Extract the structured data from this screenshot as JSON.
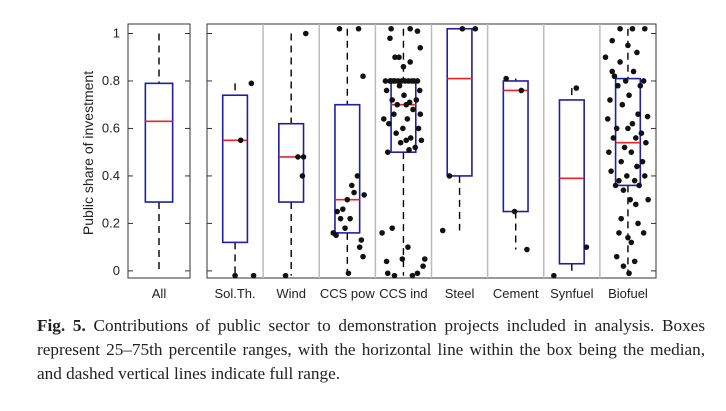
{
  "chart_data": {
    "type": "box",
    "ylabel": "Public share of investment",
    "ylim": [
      -0.03,
      1.04
    ],
    "yticks": [
      0,
      0.2,
      0.4,
      0.6,
      0.8,
      1
    ],
    "ytick_labels": [
      "0",
      "0.2",
      "0.4",
      "0.6",
      "0.8",
      "1"
    ],
    "colors": {
      "box": "#1f1fa0",
      "median": "#e8242a",
      "points": "#111111",
      "axis": "#333333",
      "divider": "#bbbbbb"
    },
    "panels": [
      {
        "categories": [
          {
            "name": "All",
            "min": 0,
            "q1": 0.29,
            "median": 0.63,
            "q3": 0.79,
            "max": 1.0,
            "points": []
          }
        ]
      },
      {
        "categories": [
          {
            "name": "Sol.Th.",
            "min": -0.02,
            "q1": 0.12,
            "median": 0.55,
            "q3": 0.74,
            "max": 0.79,
            "points": [
              [
                0.5,
                -0.02
              ],
              [
                0.6,
                0.55
              ],
              [
                0.79,
                0.79
              ],
              [
                0.83,
                -0.02
              ]
            ]
          },
          {
            "name": "Wind",
            "min": -0.02,
            "q1": 0.29,
            "median": 0.48,
            "q3": 0.62,
            "max": 1.0,
            "points": [
              [
                0.4,
                -0.02
              ],
              [
                0.62,
                0.48
              ],
              [
                0.7,
                0.4
              ],
              [
                0.72,
                0.48
              ],
              [
                0.76,
                1.0
              ]
            ]
          },
          {
            "name": "CCS pow",
            "min": -0.01,
            "q1": 0.16,
            "median": 0.3,
            "q3": 0.7,
            "max": 1.02,
            "points": [
              [
                0.25,
                0.16
              ],
              [
                0.3,
                0.15
              ],
              [
                0.32,
                0.25
              ],
              [
                0.38,
                0.22
              ],
              [
                0.42,
                0.26
              ],
              [
                0.46,
                0.18
              ],
              [
                0.5,
                0.3
              ],
              [
                0.55,
                0.22
              ],
              [
                0.58,
                0.36
              ],
              [
                0.62,
                0.33
              ],
              [
                0.68,
                0.4
              ],
              [
                0.72,
                0.1
              ],
              [
                0.75,
                0.13
              ],
              [
                0.78,
                0.06
              ],
              [
                0.8,
                0.32
              ],
              [
                0.52,
                -0.01
              ],
              [
                0.36,
                1.02
              ],
              [
                0.7,
                1.02
              ],
              [
                0.78,
                0.82
              ]
            ]
          },
          {
            "name": "CCS ind",
            "min": -0.02,
            "q1": 0.5,
            "median": 0.7,
            "q3": 0.8,
            "max": 1.02,
            "points": [
              [
                0.12,
                0.16
              ],
              [
                0.18,
                0.8
              ],
              [
                0.2,
                0.76
              ],
              [
                0.22,
                0.5
              ],
              [
                0.24,
                0.62
              ],
              [
                0.26,
                0.8
              ],
              [
                0.28,
                0.8
              ],
              [
                0.3,
                0.72
              ],
              [
                0.32,
                0.8
              ],
              [
                0.33,
                0.66
              ],
              [
                0.35,
                0.8
              ],
              [
                0.37,
                0.58
              ],
              [
                0.39,
                0.7
              ],
              [
                0.41,
                0.8
              ],
              [
                0.43,
                0.78
              ],
              [
                0.45,
                0.54
              ],
              [
                0.47,
                0.8
              ],
              [
                0.49,
                0.6
              ],
              [
                0.51,
                0.74
              ],
              [
                0.53,
                0.8
              ],
              [
                0.55,
                0.7
              ],
              [
                0.57,
                0.64
              ],
              [
                0.59,
                0.8
              ],
              [
                0.61,
                0.71
              ],
              [
                0.63,
                0.56
              ],
              [
                0.65,
                0.8
              ],
              [
                0.67,
                0.68
              ],
              [
                0.69,
                0.8
              ],
              [
                0.71,
                0.52
              ],
              [
                0.73,
                0.72
              ],
              [
                0.75,
                0.8
              ],
              [
                0.77,
                0.6
              ],
              [
                0.79,
                0.76
              ],
              [
                0.8,
                0.66
              ],
              [
                0.82,
                0.55
              ],
              [
                0.55,
                0.55
              ],
              [
                0.6,
                0.51
              ],
              [
                0.3,
                0.18
              ],
              [
                0.58,
                0.1
              ],
              [
                0.48,
                0.05
              ],
              [
                0.2,
                0.04
              ],
              [
                0.22,
                -0.01
              ],
              [
                0.34,
                -0.02
              ],
              [
                0.66,
                -0.02
              ],
              [
                0.75,
                -0.01
              ],
              [
                0.85,
                0.02
              ],
              [
                0.88,
                0.05
              ],
              [
                0.28,
                1.02
              ],
              [
                0.62,
                1.02
              ],
              [
                0.75,
                1.01
              ],
              [
                0.26,
                0.98
              ],
              [
                0.42,
                0.9
              ],
              [
                0.62,
                0.88
              ],
              [
                0.8,
                0.94
              ],
              [
                0.5,
                0.86
              ],
              [
                0.35,
                0.9
              ],
              [
                0.15,
                0.64
              ]
            ]
          },
          {
            "name": "Steel",
            "min": 0.17,
            "q1": 0.4,
            "median": 0.81,
            "q3": 1.02,
            "max": 1.02,
            "points": [
              [
                0.2,
                0.17
              ],
              [
                0.32,
                0.4
              ],
              [
                0.55,
                1.02
              ],
              [
                0.78,
                1.02
              ]
            ]
          },
          {
            "name": "Cement",
            "min": 0.09,
            "q1": 0.25,
            "median": 0.76,
            "q3": 0.8,
            "max": 0.81,
            "points": [
              [
                0.33,
                0.81
              ],
              [
                0.48,
                0.25
              ],
              [
                0.6,
                0.76
              ],
              [
                0.7,
                0.09
              ]
            ]
          },
          {
            "name": "Synfuel",
            "min": -0.02,
            "q1": 0.03,
            "median": 0.39,
            "q3": 0.72,
            "max": 0.77,
            "points": [
              [
                0.18,
                -0.02
              ],
              [
                0.58,
                0.77
              ],
              [
                0.76,
                0.1
              ]
            ]
          },
          {
            "name": "Biofuel",
            "min": -0.02,
            "q1": 0.36,
            "median": 0.54,
            "q3": 0.81,
            "max": 1.02,
            "points": [
              [
                0.1,
                0.9
              ],
              [
                0.14,
                0.64
              ],
              [
                0.16,
                0.5
              ],
              [
                0.18,
                0.72
              ],
              [
                0.2,
                0.42
              ],
              [
                0.22,
                0.84
              ],
              [
                0.24,
                0.56
              ],
              [
                0.26,
                0.82
              ],
              [
                0.28,
                0.36
              ],
              [
                0.3,
                0.6
              ],
              [
                0.32,
                0.78
              ],
              [
                0.34,
                0.38
              ],
              [
                0.36,
                0.88
              ],
              [
                0.38,
                0.46
              ],
              [
                0.4,
                0.7
              ],
              [
                0.42,
                0.34
              ],
              [
                0.44,
                0.52
              ],
              [
                0.46,
                0.8
              ],
              [
                0.48,
                0.4
              ],
              [
                0.5,
                0.6
              ],
              [
                0.52,
                0.74
              ],
              [
                0.54,
                0.3
              ],
              [
                0.56,
                0.5
              ],
              [
                0.58,
                0.62
              ],
              [
                0.6,
                0.84
              ],
              [
                0.62,
                0.38
              ],
              [
                0.64,
                0.56
              ],
              [
                0.66,
                0.44
              ],
              [
                0.68,
                0.66
              ],
              [
                0.7,
                0.36
              ],
              [
                0.72,
                0.78
              ],
              [
                0.74,
                0.58
              ],
              [
                0.76,
                0.46
              ],
              [
                0.78,
                0.8
              ],
              [
                0.8,
                0.4
              ],
              [
                0.82,
                0.54
              ],
              [
                0.85,
                0.65
              ],
              [
                0.86,
                0.3
              ],
              [
                0.34,
                0.16
              ],
              [
                0.38,
                0.22
              ],
              [
                0.5,
                0.14
              ],
              [
                0.56,
                0.12
              ],
              [
                0.64,
                0.28
              ],
              [
                0.68,
                0.2
              ],
              [
                0.78,
                0.16
              ],
              [
                0.3,
                0.06
              ],
              [
                0.42,
                0.02
              ],
              [
                0.52,
                -0.01
              ],
              [
                0.62,
                0.04
              ],
              [
                0.36,
                1.02
              ],
              [
                0.58,
                1.02
              ],
              [
                0.8,
                1.02
              ],
              [
                0.5,
                0.95
              ],
              [
                0.22,
                0.97
              ],
              [
                0.66,
                0.92
              ]
            ]
          }
        ]
      }
    ]
  },
  "caption": {
    "label": "Fig. 5.",
    "text": " Contributions of public sector to demonstration projects included in analysis. Boxes represent 25–75th percentile ranges, with the horizontal line within the box being the median, and dashed vertical lines indicate full range."
  }
}
